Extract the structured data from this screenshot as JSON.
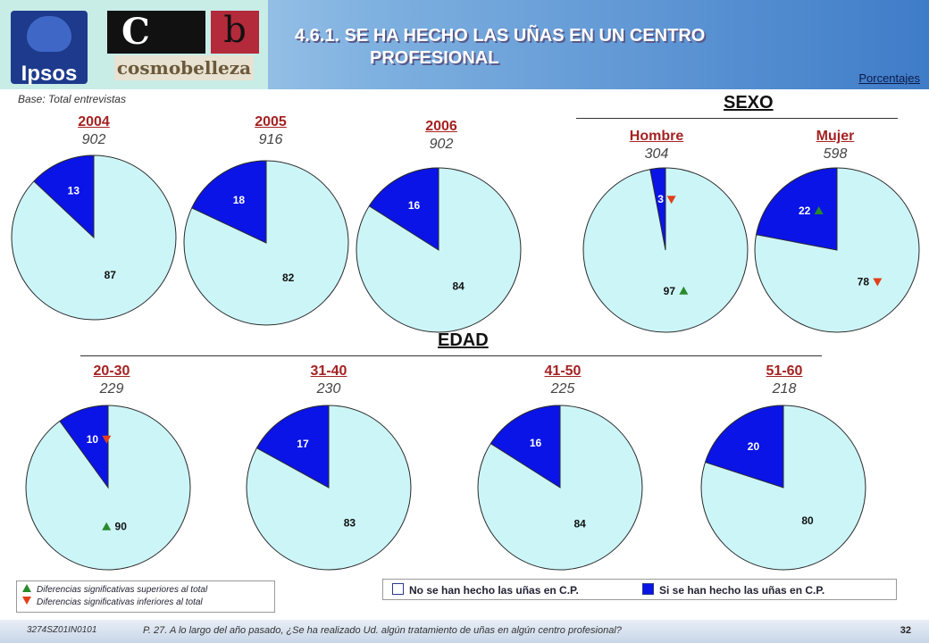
{
  "header": {
    "title_line1": "4.6.1. SE HA HECHO LAS UÑAS EN UN CENTRO",
    "title_line2": "PROFESIONAL",
    "units_label": "Porcentajes",
    "base_label": "Base: Total entrevistas",
    "logo_ipsos": "Ipsos",
    "logo_c": "C",
    "logo_b": "b",
    "logo_cosmo": "cosmobelleza"
  },
  "sections": {
    "sexo": "SEXO",
    "edad": "EDAD"
  },
  "colors": {
    "no": "#ccf5f8",
    "si": "#0a14e6",
    "up": "#2a8a2a",
    "down": "#e0401a"
  },
  "chart_data": [
    {
      "type": "pie",
      "title": "2004",
      "n": "902",
      "slices": [
        {
          "name": "No se han hecho las uñas en C.P.",
          "value": 87
        },
        {
          "name": "Si se han hecho las uñas en C.P.",
          "value": 13
        }
      ]
    },
    {
      "type": "pie",
      "title": "2005",
      "n": "916",
      "slices": [
        {
          "name": "No se han hecho las uñas en C.P.",
          "value": 82
        },
        {
          "name": "Si se han hecho las uñas en C.P.",
          "value": 18
        }
      ]
    },
    {
      "type": "pie",
      "title": "2006",
      "n": "902",
      "slices": [
        {
          "name": "No se han hecho las uñas en C.P.",
          "value": 84
        },
        {
          "name": "Si se han hecho las uñas en C.P.",
          "value": 16
        }
      ]
    },
    {
      "type": "pie",
      "title": "Hombre",
      "n": "304",
      "slices": [
        {
          "name": "No se han hecho las uñas en C.P.",
          "value": 97,
          "flag": "up"
        },
        {
          "name": "Si se han hecho las uñas en C.P.",
          "value": 3,
          "flag": "down"
        }
      ]
    },
    {
      "type": "pie",
      "title": "Mujer",
      "n": "598",
      "slices": [
        {
          "name": "No se han hecho las uñas en C.P.",
          "value": 78,
          "flag": "down"
        },
        {
          "name": "Si se han hecho las uñas en C.P.",
          "value": 22,
          "flag": "up"
        }
      ]
    },
    {
      "type": "pie",
      "title": "20-30",
      "n": "229",
      "slices": [
        {
          "name": "No se han hecho las uñas en C.P.",
          "value": 90,
          "flag": "up"
        },
        {
          "name": "Si se han hecho las uñas en C.P.",
          "value": 10,
          "flag": "down"
        }
      ]
    },
    {
      "type": "pie",
      "title": "31-40",
      "n": "230",
      "slices": [
        {
          "name": "No se han hecho las uñas en C.P.",
          "value": 83
        },
        {
          "name": "Si se han hecho las uñas en C.P.",
          "value": 17
        }
      ]
    },
    {
      "type": "pie",
      "title": "41-50",
      "n": "225",
      "slices": [
        {
          "name": "No se han hecho las uñas en C.P.",
          "value": 84
        },
        {
          "name": "Si se han hecho las uñas en C.P.",
          "value": 16
        }
      ]
    },
    {
      "type": "pie",
      "title": "51-60",
      "n": "218",
      "slices": [
        {
          "name": "No se han hecho las uñas en C.P.",
          "value": 80
        },
        {
          "name": "Si se han hecho las uñas en C.P.",
          "value": 20
        }
      ]
    }
  ],
  "legend": {
    "no": "No se han hecho las uñas en C.P.",
    "si": "Si se han hecho las uñas en C.P.",
    "sig_up": "Diferencias significativas superiores al total",
    "sig_down": "Diferencias significativas inferiores al total"
  },
  "footer": {
    "ref": "3274SZ01IN0101",
    "question": "P. 27.  A lo largo del año pasado, ¿Se ha realizado Ud.  algún tratamiento de uñas en algún centro profesional?",
    "page": "32"
  }
}
